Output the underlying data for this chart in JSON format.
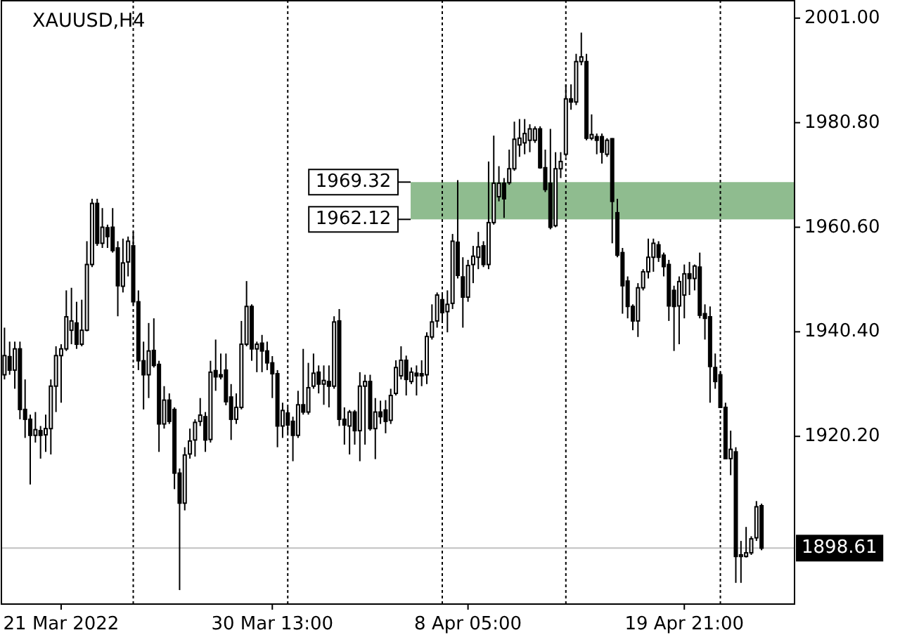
{
  "chart_data": {
    "type": "candlestick",
    "title": "XAUUSD,H4",
    "color": "#000000",
    "categories": [
      null,
      null,
      null,
      null,
      null,
      null,
      null,
      null,
      null,
      null,
      null,
      "21 Mar 2022",
      null,
      null,
      null,
      null,
      null,
      null,
      null,
      null,
      null,
      null,
      null,
      null,
      null,
      null,
      null,
      null,
      null,
      null,
      null,
      null,
      null,
      null,
      null,
      null,
      null,
      null,
      null,
      null,
      null,
      null,
      null,
      null,
      null,
      null,
      null,
      null,
      null,
      null,
      null,
      null,
      "30 Mar 13:00",
      null,
      null,
      null,
      null,
      null,
      null,
      null,
      null,
      null,
      null,
      null,
      null,
      null,
      null,
      null,
      null,
      null,
      null,
      null,
      null,
      null,
      null,
      null,
      null,
      null,
      null,
      null,
      null,
      null,
      null,
      null,
      null,
      null,
      null,
      null,
      null,
      null,
      "8 Apr 05:00",
      null,
      null,
      null,
      null,
      null,
      null,
      null,
      null,
      null,
      null,
      null,
      null,
      null,
      null,
      null,
      null,
      null,
      null,
      null,
      null,
      null,
      null,
      null,
      null,
      null,
      null,
      null,
      null,
      null,
      null,
      null,
      null,
      null,
      null,
      null,
      null,
      null,
      null,
      null,
      null,
      null,
      "19 Apr 21:00",
      null,
      null,
      null,
      null,
      null,
      null,
      null,
      null,
      null,
      null,
      null,
      null,
      null,
      null,
      null
    ],
    "ohlc": [
      [
        1932.1,
        1941.2,
        1931.2,
        1935.8
      ],
      [
        1935.6,
        1938.5,
        1932.1,
        1933.0
      ],
      [
        1933.0,
        1938.5,
        1929.4,
        1937.1
      ],
      [
        1937.1,
        1938.5,
        1923.5,
        1925.4
      ],
      [
        1925.4,
        1931.2,
        1919.9,
        1923.5
      ],
      [
        1923.5,
        1924.4,
        1910.9,
        1920.4
      ],
      [
        1920.4,
        1924.9,
        1919.0,
        1921.5
      ],
      [
        1921.3,
        1922.2,
        1915.9,
        1920.4
      ],
      [
        1920.5,
        1924.4,
        1917.2,
        1921.7
      ],
      [
        1921.7,
        1931.2,
        1916.7,
        1929.9
      ],
      [
        1929.9,
        1937.6,
        1924.9,
        1935.8
      ],
      [
        1935.8,
        1938.0,
        1926.7,
        1937.1
      ],
      [
        1937.1,
        1948.4,
        1936.7,
        1943.3
      ],
      [
        1940.7,
        1948.9,
        1938.0,
        1942.5
      ],
      [
        1942.1,
        1946.2,
        1937.1,
        1938.0
      ],
      [
        1938.0,
        1946.6,
        1937.6,
        1940.7
      ],
      [
        1940.7,
        1957.9,
        1940.5,
        1953.4
      ],
      [
        1953.4,
        1966.1,
        1952.9,
        1965.2
      ],
      [
        1965.2,
        1966.1,
        1957.0,
        1957.5
      ],
      [
        1957.5,
        1964.3,
        1956.6,
        1960.6
      ],
      [
        1960.5,
        1961.1,
        1956.6,
        1958.8
      ],
      [
        1960.6,
        1964.3,
        1955.7,
        1956.1
      ],
      [
        1956.6,
        1957.9,
        1943.4,
        1949.3
      ],
      [
        1949.2,
        1958.4,
        1948.0,
        1953.7
      ],
      [
        1953.9,
        1958.8,
        1951.1,
        1957.9
      ],
      [
        1957.0,
        1959.7,
        1945.7,
        1946.2
      ],
      [
        1946.2,
        1948.4,
        1933.0,
        1934.8
      ],
      [
        1934.8,
        1938.5,
        1925.4,
        1932.1
      ],
      [
        1932.1,
        1942.1,
        1927.6,
        1936.7
      ],
      [
        1936.8,
        1943.0,
        1933.5,
        1933.9
      ],
      [
        1934.1,
        1934.8,
        1917.2,
        1922.6
      ],
      [
        1922.6,
        1929.9,
        1921.7,
        1927.2
      ],
      [
        1927.2,
        1928.5,
        1922.6,
        1923.1
      ],
      [
        1925.4,
        1925.8,
        1910.0,
        1913.1
      ],
      [
        1913.1,
        1914.0,
        1890.5,
        1907.3
      ],
      [
        1907.3,
        1918.1,
        1905.9,
        1916.6
      ],
      [
        1916.8,
        1921.7,
        1915.9,
        1919.3
      ],
      [
        1919.5,
        1923.5,
        1916.3,
        1922.9
      ],
      [
        1923.1,
        1927.6,
        1922.2,
        1924.3
      ],
      [
        1924.0,
        1924.9,
        1917.2,
        1919.5
      ],
      [
        1919.6,
        1934.8,
        1919.0,
        1932.6
      ],
      [
        1932.9,
        1938.9,
        1929.0,
        1931.7
      ],
      [
        1932.1,
        1936.2,
        1931.2,
        1931.7
      ],
      [
        1933.0,
        1936.2,
        1926.2,
        1926.9
      ],
      [
        1927.8,
        1930.3,
        1919.5,
        1923.5
      ],
      [
        1923.5,
        1928.5,
        1922.6,
        1925.8
      ],
      [
        1925.8,
        1942.5,
        1925.4,
        1938.0
      ],
      [
        1938.0,
        1950.2,
        1937.6,
        1945.3
      ],
      [
        1945.3,
        1945.7,
        1934.8,
        1937.1
      ],
      [
        1937.1,
        1938.5,
        1932.6,
        1938.0
      ],
      [
        1938.2,
        1939.8,
        1932.6,
        1936.7
      ],
      [
        1936.7,
        1938.5,
        1933.0,
        1934.4
      ],
      [
        1934.4,
        1935.7,
        1927.6,
        1932.3
      ],
      [
        1932.3,
        1933.0,
        1918.1,
        1922.2
      ],
      [
        1922.2,
        1926.7,
        1919.9,
        1925.2
      ],
      [
        1924.7,
        1925.8,
        1920.8,
        1922.4
      ],
      [
        1923.1,
        1924.0,
        1915.4,
        1920.4
      ],
      [
        1920.4,
        1929.0,
        1919.9,
        1926.3
      ],
      [
        1926.3,
        1937.1,
        1924.4,
        1924.9
      ],
      [
        1924.9,
        1934.4,
        1924.4,
        1929.6
      ],
      [
        1929.9,
        1936.2,
        1929.4,
        1932.4
      ],
      [
        1932.6,
        1933.9,
        1928.5,
        1930.3
      ],
      [
        1930.3,
        1933.9,
        1926.3,
        1931.0
      ],
      [
        1930.8,
        1933.9,
        1925.8,
        1929.9
      ],
      [
        1929.9,
        1943.4,
        1929.4,
        1942.3
      ],
      [
        1942.5,
        1944.8,
        1922.2,
        1923.5
      ],
      [
        1923.5,
        1925.8,
        1918.6,
        1922.4
      ],
      [
        1922.2,
        1925.3,
        1916.7,
        1924.9
      ],
      [
        1924.9,
        1925.3,
        1918.6,
        1921.3
      ],
      [
        1921.3,
        1932.6,
        1915.4,
        1929.9
      ],
      [
        1929.9,
        1932.1,
        1918.6,
        1930.8
      ],
      [
        1930.8,
        1932.1,
        1921.3,
        1921.7
      ],
      [
        1921.7,
        1927.6,
        1915.8,
        1924.9
      ],
      [
        1924.9,
        1927.1,
        1922.6,
        1924.0
      ],
      [
        1925.3,
        1927.2,
        1920.8,
        1923.1
      ],
      [
        1923.3,
        1929.4,
        1922.6,
        1928.1
      ],
      [
        1928.5,
        1934.9,
        1928.1,
        1933.5
      ],
      [
        1931.9,
        1937.6,
        1931.2,
        1934.9
      ],
      [
        1934.9,
        1935.8,
        1928.1,
        1931.2
      ],
      [
        1930.8,
        1933.5,
        1930.3,
        1932.6
      ],
      [
        1932.4,
        1933.9,
        1928.1,
        1931.9
      ],
      [
        1932.3,
        1934.9,
        1929.9,
        1931.9
      ],
      [
        1932.1,
        1940.3,
        1930.3,
        1939.5
      ],
      [
        1939.4,
        1945.7,
        1938.9,
        1942.3
      ],
      [
        1942.5,
        1948.0,
        1941.2,
        1947.5
      ],
      [
        1946.6,
        1948.0,
        1942.5,
        1944.1
      ],
      [
        1944.3,
        1948.4,
        1940.3,
        1945.7
      ],
      [
        1945.9,
        1959.3,
        1944.8,
        1957.9
      ],
      [
        1957.7,
        1969.7,
        1950.7,
        1951.3
      ],
      [
        1951.0,
        1954.8,
        1941.2,
        1947.1
      ],
      [
        1947.1,
        1954.3,
        1946.2,
        1953.2
      ],
      [
        1953.4,
        1957.0,
        1949.8,
        1955.0
      ],
      [
        1954.8,
        1959.7,
        1952.5,
        1956.8
      ],
      [
        1957.0,
        1957.9,
        1952.9,
        1953.4
      ],
      [
        1953.4,
        1973.3,
        1952.5,
        1961.5
      ],
      [
        1961.5,
        1978.3,
        1961.1,
        1969.1
      ],
      [
        1966.5,
        1972.4,
        1965.6,
        1969.1
      ],
      [
        1969.1,
        1970.1,
        1962.4,
        1966.1
      ],
      [
        1969.2,
        1975.6,
        1968.8,
        1971.9
      ],
      [
        1971.9,
        1981.0,
        1971.5,
        1977.6
      ],
      [
        1976.5,
        1981.5,
        1974.2,
        1977.8
      ],
      [
        1976.9,
        1981.5,
        1974.7,
        1978.7
      ],
      [
        1977.4,
        1980.5,
        1975.1,
        1979.6
      ],
      [
        1977.4,
        1980.1,
        1976.9,
        1979.6
      ],
      [
        1979.6,
        1980.1,
        1971.9,
        1972.1
      ],
      [
        1972.1,
        1975.6,
        1967.4,
        1967.9
      ],
      [
        1969.1,
        1979.6,
        1960.2,
        1960.6
      ],
      [
        1960.9,
        1975.1,
        1960.6,
        1971.9
      ],
      [
        1971.9,
        1975.1,
        1970.1,
        1973.3
      ],
      [
        1974.7,
        1988.2,
        1974.2,
        1985.4
      ],
      [
        1985.4,
        1988.2,
        1983.3,
        1984.8
      ],
      [
        1984.8,
        1994.1,
        1984.2,
        1992.6
      ],
      [
        1992.6,
        1998.2,
        1991.9,
        1993.5
      ],
      [
        1992.6,
        1994.1,
        1977.4,
        1977.8
      ],
      [
        1977.8,
        1982.4,
        1977.4,
        1978.5
      ],
      [
        1978.1,
        1978.7,
        1974.7,
        1977.4
      ],
      [
        1978.1,
        1978.7,
        1972.9,
        1975.1
      ],
      [
        1974.7,
        1977.8,
        1974.2,
        1977.4
      ],
      [
        1977.7,
        1977.8,
        1957.5,
        1965.6
      ],
      [
        1963.4,
        1966.1,
        1954.8,
        1955.2
      ],
      [
        1955.7,
        1956.6,
        1943.9,
        1949.3
      ],
      [
        1950.2,
        1951.1,
        1943.0,
        1945.3
      ],
      [
        1945.3,
        1945.7,
        1940.7,
        1942.5
      ],
      [
        1942.5,
        1949.8,
        1939.4,
        1948.9
      ],
      [
        1948.9,
        1952.5,
        1948.4,
        1952.0
      ],
      [
        1952.0,
        1958.4,
        1950.7,
        1954.8
      ],
      [
        1954.8,
        1958.4,
        1952.0,
        1957.5
      ],
      [
        1957.2,
        1957.9,
        1953.9,
        1954.8
      ],
      [
        1955.2,
        1955.7,
        1951.1,
        1953.0
      ],
      [
        1953.4,
        1954.3,
        1942.5,
        1945.4
      ],
      [
        1948.4,
        1949.3,
        1936.7,
        1945.3
      ],
      [
        1945.4,
        1951.1,
        1938.0,
        1950.1
      ],
      [
        1947.5,
        1953.4,
        1943.0,
        1951.6
      ],
      [
        1951.6,
        1953.9,
        1947.5,
        1950.7
      ],
      [
        1950.7,
        1953.4,
        1948.4,
        1953.1
      ],
      [
        1952.9,
        1955.7,
        1943.0,
        1943.6
      ],
      [
        1943.9,
        1945.7,
        1938.9,
        1943.0
      ],
      [
        1943.3,
        1945.3,
        1926.7,
        1933.7
      ],
      [
        1933.5,
        1936.2,
        1929.4,
        1930.8
      ],
      [
        1932.1,
        1932.6,
        1925.8,
        1925.8
      ],
      [
        1925.8,
        1926.7,
        1915.9,
        1915.9
      ],
      [
        1915.9,
        1921.3,
        1912.7,
        1917.7
      ],
      [
        1917.2,
        1918.1,
        1891.9,
        1897.0
      ],
      [
        1897.0,
        1900.0,
        1891.9,
        1897.3
      ],
      [
        1897.0,
        1902.7,
        1896.8,
        1897.7
      ],
      [
        1897.7,
        1900.9,
        1897.3,
        1900.4
      ],
      [
        1900.6,
        1907.7,
        1900.0,
        1906.6
      ],
      [
        1906.8,
        1907.2,
        1898.2,
        1898.61
      ]
    ],
    "ylim": [
      1887.8,
      2004.5
    ],
    "yticks": [
      {
        "value": 2001,
        "label": "2001.00"
      },
      {
        "value": 1980.8,
        "label": "1980.80"
      },
      {
        "value": 1960.6,
        "label": "1960.60"
      },
      {
        "value": 1940.4,
        "label": "1940.40"
      },
      {
        "value": 1920.2,
        "label": "1920.20"
      }
    ],
    "bands": [
      {
        "axis": "y",
        "from": 1962.12,
        "to": 1969.32,
        "color": "#8fbc8f"
      }
    ],
    "ref_lines": [
      {
        "axis": "y",
        "value": 1898.61,
        "label": "1898.61",
        "color": "#c0c0c0"
      }
    ],
    "annotations": [
      "1969.32",
      "1962.12"
    ]
  }
}
